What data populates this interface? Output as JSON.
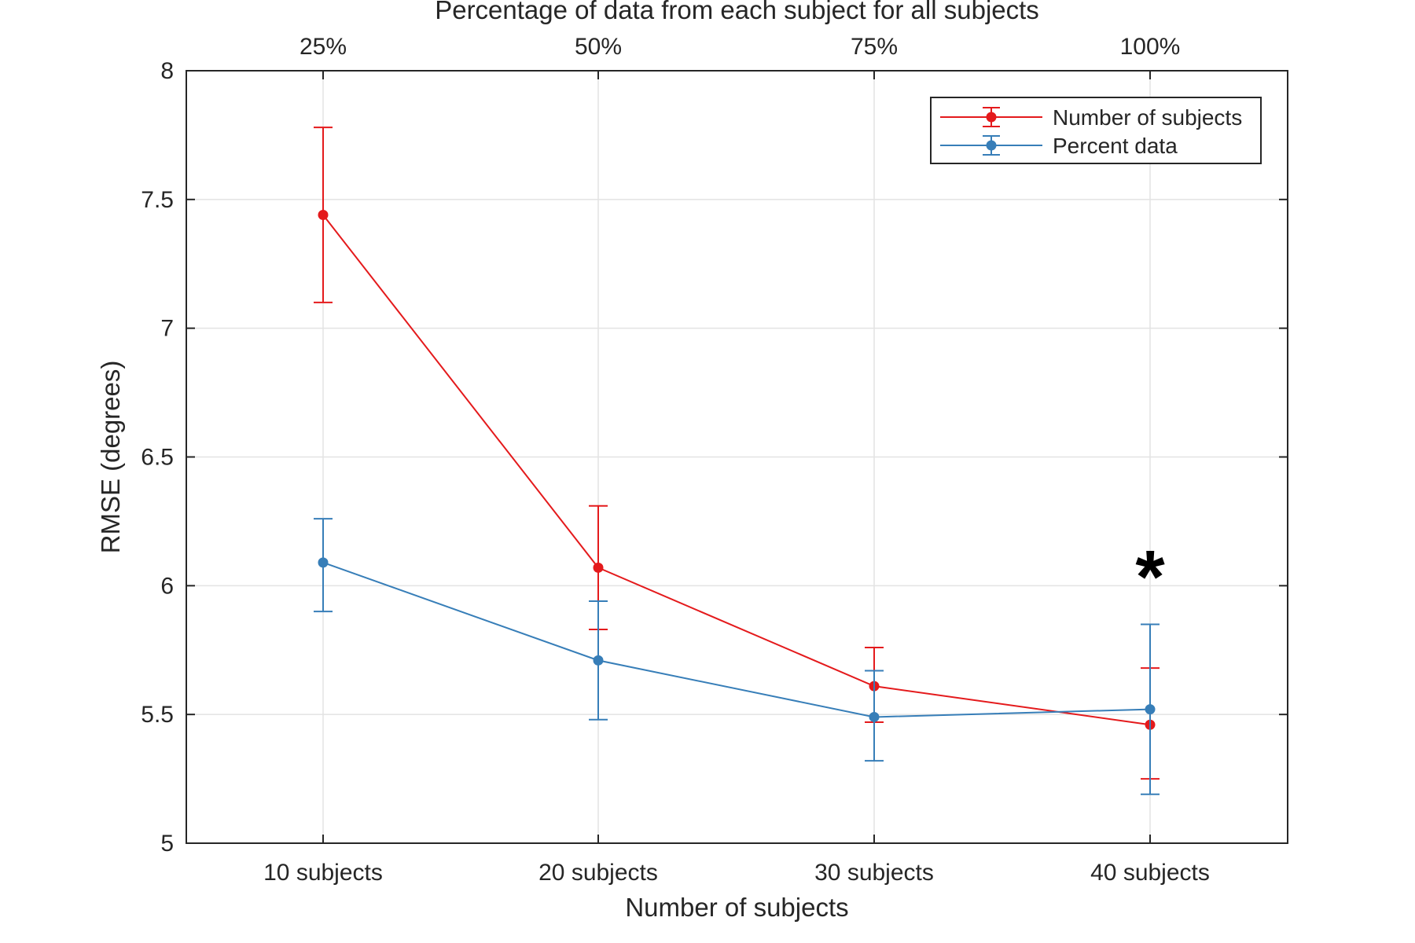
{
  "chart_data": {
    "type": "line",
    "xlabel": "Number of subjects",
    "ylabel": "RMSE (degrees)",
    "top_xlabel": "Percentage of data from each subject for all subjects",
    "categories": [
      "10 subjects",
      "20 subjects",
      "30 subjects",
      "40 subjects"
    ],
    "top_categories": [
      "25%",
      "50%",
      "75%",
      "100%"
    ],
    "yticks": [
      "5",
      "5.5",
      "6",
      "6.5",
      "7",
      "7.5",
      "8"
    ],
    "ylim": [
      5,
      8
    ],
    "grid": true,
    "legend_position": "top-right",
    "series": [
      {
        "name": "Number of subjects",
        "color": "#e41a1c",
        "values": [
          7.44,
          6.07,
          5.61,
          5.46
        ],
        "lower": [
          7.1,
          5.83,
          5.47,
          5.25
        ],
        "upper": [
          7.78,
          6.31,
          5.76,
          5.68
        ]
      },
      {
        "name": "Percent data",
        "color": "#377eb8",
        "values": [
          6.09,
          5.71,
          5.49,
          5.52
        ],
        "lower": [
          5.9,
          5.48,
          5.32,
          5.19
        ],
        "upper": [
          6.26,
          5.94,
          5.67,
          5.85
        ]
      }
    ],
    "annotations": [
      {
        "text": "*",
        "category_index": 3,
        "y": 6.05
      }
    ]
  }
}
